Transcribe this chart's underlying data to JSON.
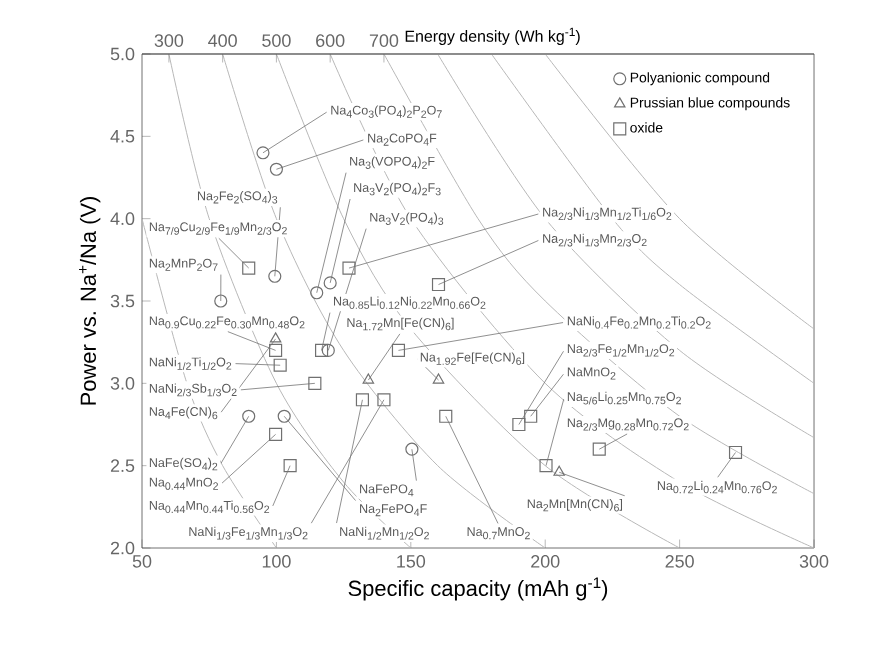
{
  "chart_data": {
    "type": "scatter",
    "xlabel": "Specific capacity (mAh g$^{-1}$)",
    "ylabel": "Power vs. Na$^{+}$/Na (V)",
    "x2label": "Energy density (Wh kg$^{-1}$)",
    "xlim": [
      50,
      300
    ],
    "xticks": [
      50,
      100,
      150,
      200,
      250,
      300
    ],
    "ylim": [
      2,
      5
    ],
    "yticks": [
      {
        "value": 2,
        "label": "2.0"
      },
      {
        "value": 2.5,
        "label": "2.5"
      },
      {
        "value": 3,
        "label": "3.0"
      },
      {
        "value": 3.5,
        "label": "3.5"
      },
      {
        "value": 4,
        "label": "4.0"
      },
      {
        "value": 4.5,
        "label": "4.5"
      },
      {
        "value": 5,
        "label": "5.0"
      }
    ],
    "x2lim": [
      250,
      1500
    ],
    "x2ticks": [
      300,
      400,
      500,
      600,
      700
    ],
    "legend": "top right",
    "series": [
      {
        "type": "line",
        "color": "#b8b8b8",
        "x": [
          50,
          66.7,
          80,
          100
        ],
        "values": [
          4,
          3,
          2.5,
          2
        ]
      },
      {
        "type": "line",
        "color": "#b8b8b8",
        "x": [
          60,
          75,
          100,
          125,
          150
        ],
        "values": [
          5,
          4,
          3,
          2.4,
          2
        ]
      },
      {
        "type": "line",
        "color": "#b8b8b8",
        "x": [
          80,
          100,
          125,
          160,
          200
        ],
        "values": [
          5,
          4,
          3.2,
          2.5,
          2
        ]
      },
      {
        "type": "line",
        "color": "#b8b8b8",
        "x": [
          100,
          125,
          150,
          200,
          250
        ],
        "values": [
          5,
          4,
          3.33,
          2.5,
          2
        ]
      },
      {
        "type": "line",
        "color": "#b8b8b8",
        "x": [
          120,
          150,
          200,
          250,
          300
        ],
        "values": [
          5,
          4,
          3,
          2.4,
          2
        ]
      },
      {
        "type": "line",
        "color": "#b8b8b8",
        "x": [
          140,
          175,
          200,
          250,
          300
        ],
        "values": [
          5,
          4,
          3.5,
          2.8,
          2.33
        ]
      },
      {
        "type": "line",
        "color": "#b8b8b8",
        "x": [
          160,
          200,
          250,
          300
        ],
        "values": [
          5,
          4,
          3.2,
          2.67
        ]
      },
      {
        "type": "line",
        "color": "#b8b8b8",
        "x": [
          180,
          225,
          250,
          300
        ],
        "values": [
          5,
          4,
          3.6,
          3
        ]
      },
      {
        "type": "line",
        "color": "#b8b8b8",
        "x": [
          200,
          250,
          300
        ],
        "values": [
          5,
          4,
          3.33
        ]
      },
      {
        "name": "Polyanionic compound",
        "marker": "circle",
        "color": "#707070",
        "x": [
          95,
          100,
          115,
          120,
          119.3,
          99.4,
          79.3,
          89.7,
          150.4,
          102.9
        ],
        "values": [
          4.4,
          4.3,
          3.55,
          3.61,
          3.2,
          3.65,
          3.5,
          2.8,
          2.6,
          2.8
        ]
      },
      {
        "name": "Prussian blue compounds",
        "marker": "triangle",
        "color": "#707070",
        "x": [
          99.7,
          134.2,
          160.3,
          205.2
        ],
        "values": [
          3.27,
          3.02,
          3.02,
          2.46
        ]
      },
      {
        "name": "oxide",
        "marker": "square",
        "color": "#707070",
        "x": [
          127,
          160.3,
          89.7,
          116.8,
          99.7,
          101.4,
          114.3,
          145.4,
          190.2,
          194.6,
          200.3,
          220.1,
          99.7,
          105.1,
          140,
          132,
          163,
          270.8
        ],
        "values": [
          3.7,
          3.6,
          3.7,
          3.2,
          3.2,
          3.11,
          3.0,
          3.2,
          2.75,
          2.8,
          2.5,
          2.6,
          2.69,
          2.5,
          2.9,
          2.9,
          2.8,
          2.58
        ]
      }
    ],
    "annotations": [
      "Na$_{4}$Co$_{3}$(PO$_{4}$)$_{2}$P$_{2}$O$_{7}$",
      {
        "text": "Na$_{2}$CoPO$_{4}$F",
        "x": 100,
        "y": 4.3
      },
      {
        "text": "Na$_{3}$(VOPO$_{4}$)$_{2}$F",
        "x": 115,
        "y": 3.55
      },
      "Na$_{3}$V$_{2}$(PO$_{4}$)$_{2}$F$_{3}$",
      {
        "text": "Na$_{3}$V$_{2}$(PO$_{4}$)$_{3}$",
        "x": 119.3,
        "y": 3.2
      },
      {
        "text": "Na$_{2}$Fe$_{2}$(SO$_{4}$)$_{3}$",
        "x": 99.4,
        "y": 3.65
      },
      "Na$_{7/9}$Cu$_{2/9}$Fe$_{1/9}$Mn$_{2/3}$O$_{2}$",
      {
        "text": "Na$_{2}$MnP$_{2}$O$_{7}$",
        "x": 79.3,
        "y": 3.5
      },
      "Na$_{0.9}$Cu$_{0.22}$Fe$_{0.30}$Mn$_{0.48}$O$_{2}$",
      {
        "text": "Na$_{4}$Fe(CN)$_{6}$",
        "x": 99.7,
        "y": 3.27
      },
      "NaNi$_{1/2}$Ti$_{1/2}$O$_{2}$",
      {
        "text": "NaNi$_{2/3}$Sb$_{1/3}$O$_{2}$",
        "x": 114.3,
        "y": 3.0
      },
      {
        "text": "NaFe(SO$_{4}$)$_{2}$",
        "x": 89.7,
        "y": 2.8
      },
      {
        "text": "Na$_{0.44}$MnO$_{2}$",
        "x": 99.7,
        "y": 2.69
      },
      {
        "text": "Na$_{0.44}$Mn$_{0.44}$Ti$_{0.56}$O$_{2}$",
        "x": 105.1,
        "y": 2.5
      },
      {
        "text": "NaNi$_{1/3}$Fe$_{1/3}$Mn$_{1/3}$O$_{2}$",
        "x": 140,
        "y": 2.9
      },
      {
        "text": "NaNi$_{1/2}$Mn$_{1/2}$O$_{2}$",
        "x": 132,
        "y": 2.9
      },
      {
        "text": "Na$_{0.7}$MnO$_{2}$",
        "x": 163,
        "y": 2.8
      },
      {
        "text": "NaFePO$_{4}$",
        "x": 150.4,
        "y": 2.6
      },
      {
        "text": "Na$_{2}$FePO$_{4}$F",
        "x": 102.9,
        "y": 2.8
      },
      "Na$_{2/3}$Ni$_{1/3}$Mn$_{1/2}$Ti$_{1/6}$O$_{2}$",
      {
        "text": "Na$_{2/3}$Ni$_{1/3}$Mn$_{2/3}$O$_{2}$",
        "x": 160.3,
        "y": 3.6
      },
      "Na$_{0.85}$Li$_{0.12}$Ni$_{0.22}$Mn$_{0.66}$O$_{2}$",
      {
        "text": "Na$_{1.72}$Mn[Fe(CN)$_{6}$]",
        "x": 134.2,
        "y": 3.02
      },
      {
        "text": "Na$_{1.92}$Fe[Fe(CN)$_{6}$]",
        "x": 160.3,
        "y": 3.02
      },
      "NaNi$_{0.4}$Fe$_{0.2}$Mn$_{0.2}$Ti$_{0.2}$O$_{2}$",
      {
        "text": "Na$_{2/3}$Fe$_{1/2}$Mn$_{1/2}$O$_{2}$",
        "x": 190.2,
        "y": 2.75
      },
      {
        "text": "NaMnO$_{2}$",
        "x": 194.6,
        "y": 2.8
      },
      {
        "text": "Na$_{5/6}$Li$_{0.25}$Mn$_{0.75}$O$_{2}$",
        "x": 200.3,
        "y": 2.5
      },
      {
        "text": "Na$_{2/3}$Mg$_{0.28}$Mn$_{0.72}$O$_{2}$",
        "x": 220.1,
        "y": 2.6
      },
      {
        "text": "Na$_{2}$Mn[Mn(CN)$_{6}$]",
        "x": 205.2,
        "y": 2.46
      },
      {
        "text": "Na$_{0.72}$Li$_{0.24}$Mn$_{0.76}$O$_{2}$",
        "x": 270.8,
        "y": 2.58
      }
    ]
  }
}
